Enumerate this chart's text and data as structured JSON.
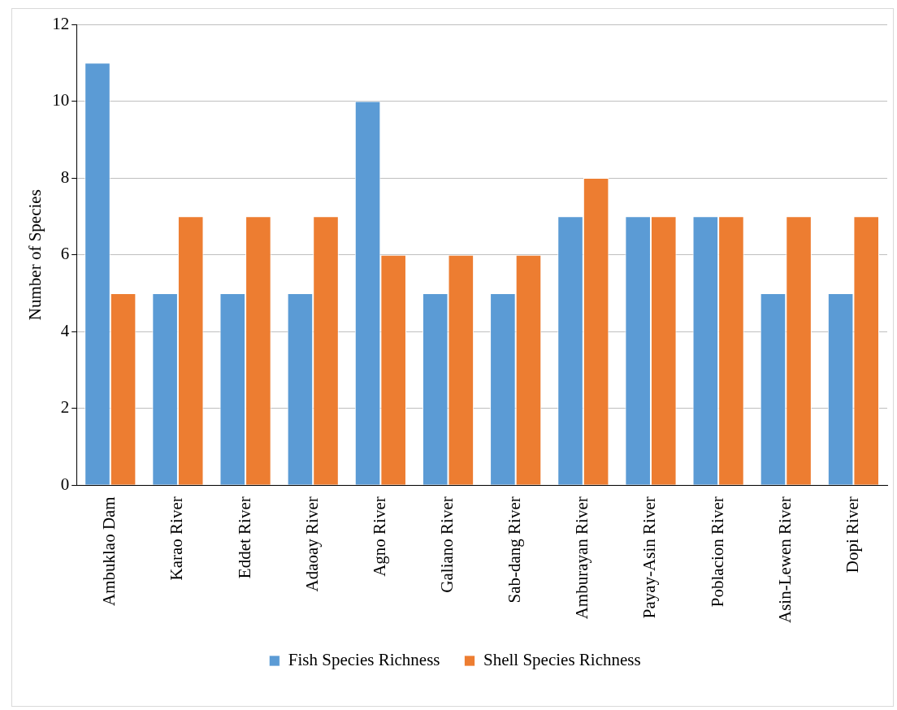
{
  "chart_data": {
    "type": "bar",
    "ylabel": "Number of Species",
    "categories": [
      "Ambuklao Dam",
      "Karao River",
      "Eddet River",
      "Adaoay River",
      "Agno River",
      "Galiano River",
      "Sab-dang River",
      "Amburayan River",
      "Payay-Asin River",
      "Poblacion River",
      "Asin-Lewen River",
      "Dopi River"
    ],
    "series": [
      {
        "name": "Fish Species Richness",
        "color": "#5b9bd5",
        "values": [
          11,
          5,
          5,
          5,
          10,
          5,
          5,
          7,
          7,
          7,
          5,
          5
        ]
      },
      {
        "name": "Shell Species Richness",
        "color": "#ed7d31",
        "values": [
          5,
          7,
          7,
          7,
          6,
          6,
          6,
          8,
          7,
          7,
          7,
          7
        ]
      }
    ],
    "ylim": [
      0,
      12
    ],
    "yticks": [
      0,
      2,
      4,
      6,
      8,
      10,
      12
    ],
    "grid": "y",
    "legend": "bottom"
  }
}
